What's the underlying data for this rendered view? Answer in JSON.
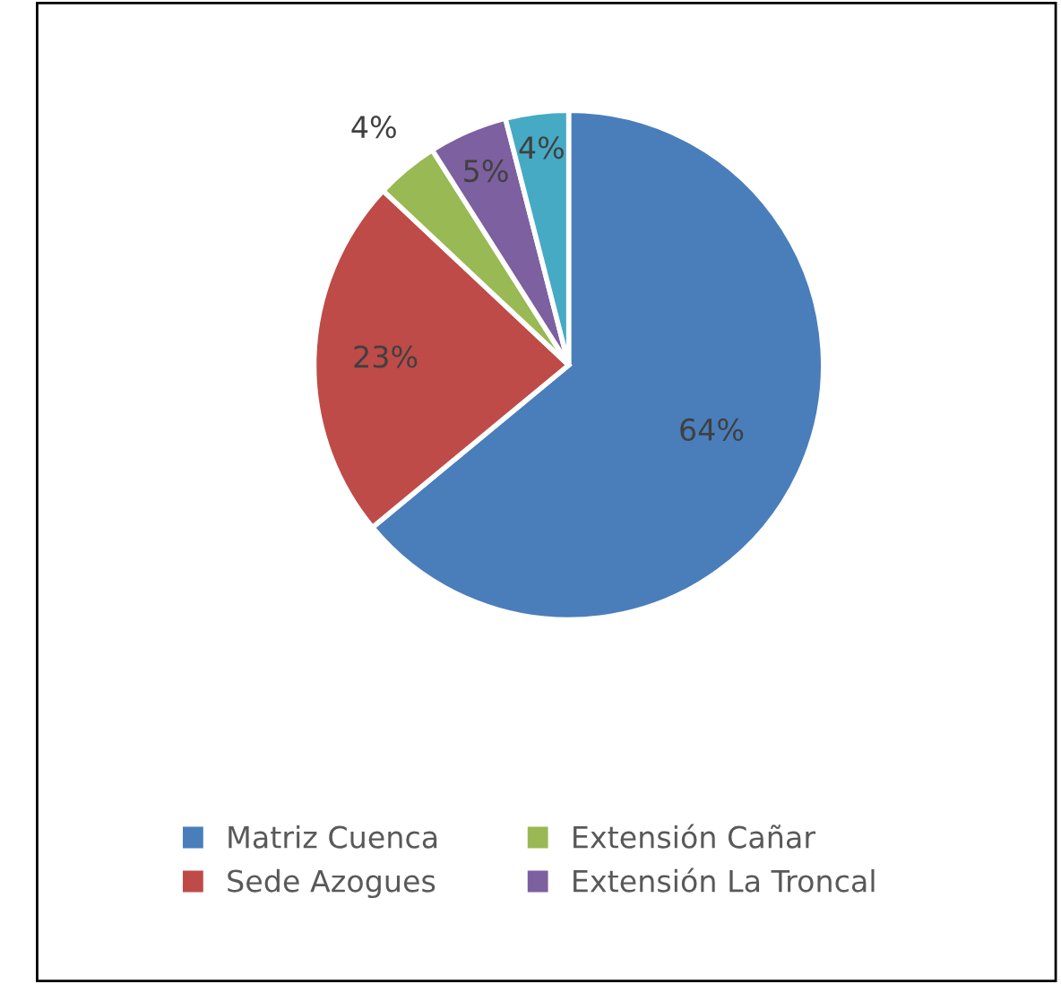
{
  "chart_data": {
    "type": "pie",
    "categories": [
      "Matriz Cuenca",
      "Sede Azogues",
      "Extensión Cañar",
      "Extensión La Troncal",
      null
    ],
    "values": [
      64,
      23,
      4,
      5,
      4
    ],
    "value_labels": [
      "64%",
      "23%",
      "4%",
      "5%",
      "4%"
    ],
    "colors": [
      "#4a7ebb",
      "#be4b48",
      "#98b954",
      "#7d60a0",
      "#46aac5"
    ],
    "legend": "bottom"
  }
}
